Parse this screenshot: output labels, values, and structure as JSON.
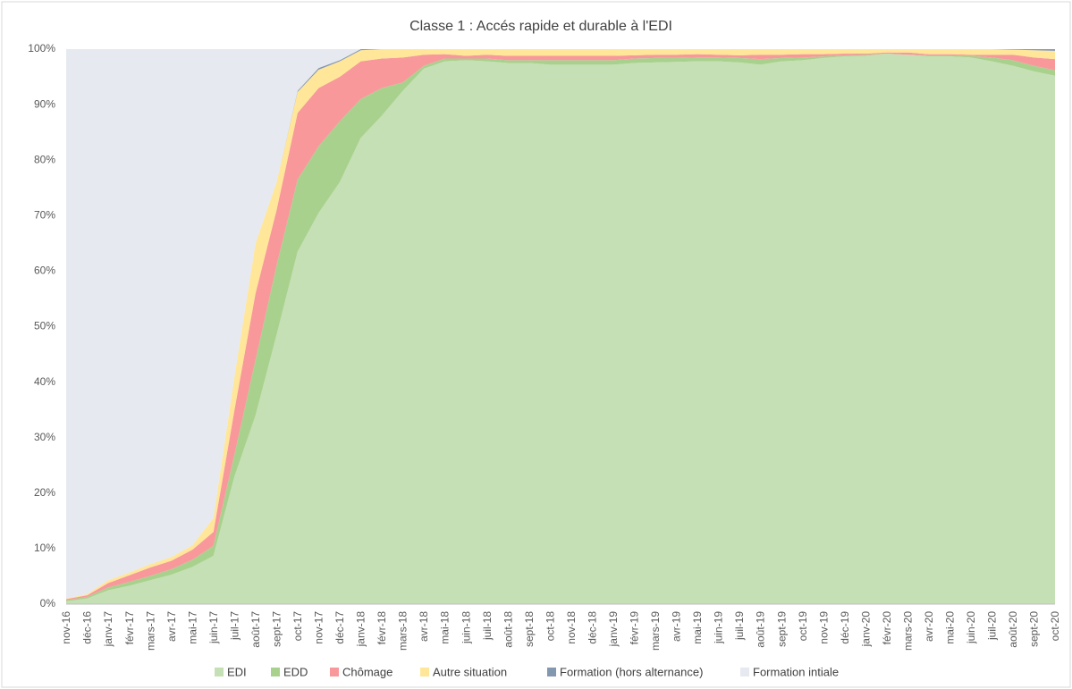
{
  "chart_data": {
    "type": "stacked_area",
    "title": "Classe 1 : Accés rapide et durable à l'EDI",
    "categories": [
      "nov-16",
      "déc-16",
      "janv-17",
      "févr-17",
      "mars-17",
      "avr-17",
      "mai-17",
      "juin-17",
      "juil-17",
      "août-17",
      "sept-17",
      "oct-17",
      "nov-17",
      "déc-17",
      "janv-18",
      "févr-18",
      "mars-18",
      "avr-18",
      "mai-18",
      "juin-18",
      "juil-18",
      "août-18",
      "sept-18",
      "oct-18",
      "nov-18",
      "déc-18",
      "janv-19",
      "févr-19",
      "mars-19",
      "avr-19",
      "mai-19",
      "juin-19",
      "juil-19",
      "août-19",
      "sept-19",
      "oct-19",
      "nov-19",
      "déc-19",
      "janv-20",
      "févr-20",
      "mars-20",
      "avr-20",
      "mai-20",
      "juin-20",
      "juil-20",
      "août-20",
      "sept-20",
      "oct-20"
    ],
    "series": [
      {
        "name": "EDI",
        "color": "#c5e0b4",
        "values": [
          0.5,
          1,
          2.5,
          3.3,
          4.3,
          5.3,
          6.7,
          8.7,
          23,
          34,
          48.5,
          63.5,
          70.5,
          76,
          84,
          88,
          92.5,
          96.5,
          97.8,
          98,
          97.8,
          97.5,
          97.5,
          97.2,
          97.2,
          97.2,
          97.2,
          97.5,
          97.6,
          97.7,
          97.8,
          97.8,
          97.6,
          97.2,
          97.8,
          98,
          98.4,
          98.7,
          98.8,
          99.2,
          99,
          98.7,
          98.7,
          98.5,
          97.8,
          97,
          96,
          95.2
        ]
      },
      {
        "name": "EDD",
        "color": "#a9d18e",
        "values": [
          0.2,
          0.3,
          0.5,
          0.7,
          0.8,
          1,
          1.3,
          1.8,
          4,
          10,
          12.5,
          13,
          12,
          11,
          7,
          5,
          1.5,
          0.5,
          0.5,
          0.3,
          0.5,
          0.5,
          0.5,
          0.8,
          0.8,
          0.8,
          0.8,
          0.8,
          0.8,
          0.7,
          0.7,
          0.7,
          0.8,
          1,
          0.6,
          0.5,
          0.3,
          0.2,
          0.2,
          0,
          0,
          0.2,
          0.2,
          0.3,
          0.7,
          1,
          1,
          1
        ]
      },
      {
        "name": "Chômage",
        "color": "#f8989a",
        "values": [
          0.2,
          0.3,
          0.8,
          1.2,
          1.5,
          1.5,
          1.8,
          2.5,
          8,
          12,
          10,
          12,
          10.5,
          8,
          6.8,
          5.3,
          4.5,
          2,
          0.8,
          0.5,
          0.7,
          0.8,
          0.8,
          0.8,
          0.8,
          0.8,
          0.8,
          0.6,
          0.6,
          0.6,
          0.6,
          0.5,
          0.5,
          0.8,
          0.6,
          0.6,
          0.4,
          0.3,
          0.2,
          0.2,
          0.4,
          0.2,
          0.2,
          0.2,
          0.5,
          1,
          1.5,
          2
        ]
      },
      {
        "name": "Autre situation",
        "color": "#ffe699",
        "values": [
          0.1,
          0.2,
          0.5,
          0.5,
          0.6,
          0.7,
          0.8,
          2.5,
          6,
          9,
          5,
          3.8,
          3.3,
          2.8,
          2,
          1.7,
          1.5,
          1,
          0.9,
          1.2,
          1,
          1.2,
          1.2,
          1.2,
          1.2,
          1.2,
          1.2,
          1.1,
          1,
          1,
          0.9,
          1,
          1.1,
          1,
          1,
          0.9,
          0.9,
          0.8,
          0.8,
          0.6,
          0.6,
          0.9,
          0.9,
          1,
          1,
          0.9,
          1.3,
          1.5
        ]
      },
      {
        "name": "Formation (hors alternance)",
        "color": "#8497b0",
        "values": [
          0,
          0,
          0,
          0,
          0,
          0,
          0,
          0,
          0,
          0,
          0,
          0.2,
          0.3,
          0.2,
          0.2,
          0,
          0,
          0,
          0,
          0,
          0,
          0,
          0,
          0,
          0,
          0,
          0,
          0,
          0,
          0,
          0,
          0,
          0,
          0,
          0,
          0,
          0,
          0,
          0,
          0,
          0,
          0,
          0,
          0,
          0,
          0.1,
          0.2,
          0.3
        ]
      },
      {
        "name": "Formation intiale",
        "color": "#e6e9ef",
        "values": [
          99,
          98.2,
          95.7,
          94.3,
          92.8,
          91.5,
          89.4,
          84.5,
          59,
          35,
          24,
          7.5,
          3.4,
          2,
          0,
          0,
          0,
          0,
          0,
          0,
          0,
          0,
          0,
          0,
          0,
          0,
          0,
          0,
          0,
          0,
          0,
          0,
          0,
          0,
          0,
          0,
          0,
          0,
          0,
          0,
          0,
          0,
          0,
          0,
          0,
          0,
          0,
          0
        ]
      }
    ],
    "ylim": [
      0,
      100
    ],
    "yticks": [
      {
        "value": 0,
        "label": "0%"
      },
      {
        "value": 10,
        "label": "10%"
      },
      {
        "value": 20,
        "label": "20%"
      },
      {
        "value": 30,
        "label": "30%"
      },
      {
        "value": 40,
        "label": "40%"
      },
      {
        "value": 50,
        "label": "50%"
      },
      {
        "value": 60,
        "label": "60%"
      },
      {
        "value": 70,
        "label": "70%"
      },
      {
        "value": 80,
        "label": "80%"
      },
      {
        "value": 90,
        "label": "90%"
      },
      {
        "value": 100,
        "label": "100%"
      }
    ],
    "legend": "bottom"
  }
}
